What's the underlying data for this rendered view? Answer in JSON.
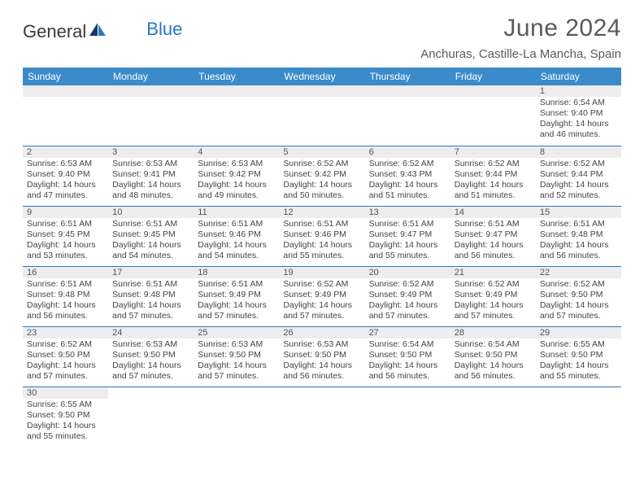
{
  "logo": {
    "part1": "General",
    "part2": "Blue"
  },
  "title": "June 2024",
  "location": "Anchuras, Castille-La Mancha, Spain",
  "dayHeaders": [
    "Sunday",
    "Monday",
    "Tuesday",
    "Wednesday",
    "Thursday",
    "Friday",
    "Saturday"
  ],
  "colors": {
    "headerBg": "#3b8bca",
    "headerText": "#ffffff",
    "rowStripe": "#ededed",
    "border": "#2b77c0",
    "text": "#454545",
    "titleText": "#5a5a5a"
  },
  "fonts": {
    "title_pt": 30,
    "location_pt": 15,
    "header_pt": 12,
    "daynum_pt": 11,
    "body_pt": 10.5
  },
  "weeks": [
    [
      null,
      null,
      null,
      null,
      null,
      null,
      {
        "n": "1",
        "sr": "Sunrise: 6:54 AM",
        "ss": "Sunset: 9:40 PM",
        "d1": "Daylight: 14 hours",
        "d2": "and 46 minutes."
      }
    ],
    [
      {
        "n": "2",
        "sr": "Sunrise: 6:53 AM",
        "ss": "Sunset: 9:40 PM",
        "d1": "Daylight: 14 hours",
        "d2": "and 47 minutes."
      },
      {
        "n": "3",
        "sr": "Sunrise: 6:53 AM",
        "ss": "Sunset: 9:41 PM",
        "d1": "Daylight: 14 hours",
        "d2": "and 48 minutes."
      },
      {
        "n": "4",
        "sr": "Sunrise: 6:53 AM",
        "ss": "Sunset: 9:42 PM",
        "d1": "Daylight: 14 hours",
        "d2": "and 49 minutes."
      },
      {
        "n": "5",
        "sr": "Sunrise: 6:52 AM",
        "ss": "Sunset: 9:42 PM",
        "d1": "Daylight: 14 hours",
        "d2": "and 50 minutes."
      },
      {
        "n": "6",
        "sr": "Sunrise: 6:52 AM",
        "ss": "Sunset: 9:43 PM",
        "d1": "Daylight: 14 hours",
        "d2": "and 51 minutes."
      },
      {
        "n": "7",
        "sr": "Sunrise: 6:52 AM",
        "ss": "Sunset: 9:44 PM",
        "d1": "Daylight: 14 hours",
        "d2": "and 51 minutes."
      },
      {
        "n": "8",
        "sr": "Sunrise: 6:52 AM",
        "ss": "Sunset: 9:44 PM",
        "d1": "Daylight: 14 hours",
        "d2": "and 52 minutes."
      }
    ],
    [
      {
        "n": "9",
        "sr": "Sunrise: 6:51 AM",
        "ss": "Sunset: 9:45 PM",
        "d1": "Daylight: 14 hours",
        "d2": "and 53 minutes."
      },
      {
        "n": "10",
        "sr": "Sunrise: 6:51 AM",
        "ss": "Sunset: 9:45 PM",
        "d1": "Daylight: 14 hours",
        "d2": "and 54 minutes."
      },
      {
        "n": "11",
        "sr": "Sunrise: 6:51 AM",
        "ss": "Sunset: 9:46 PM",
        "d1": "Daylight: 14 hours",
        "d2": "and 54 minutes."
      },
      {
        "n": "12",
        "sr": "Sunrise: 6:51 AM",
        "ss": "Sunset: 9:46 PM",
        "d1": "Daylight: 14 hours",
        "d2": "and 55 minutes."
      },
      {
        "n": "13",
        "sr": "Sunrise: 6:51 AM",
        "ss": "Sunset: 9:47 PM",
        "d1": "Daylight: 14 hours",
        "d2": "and 55 minutes."
      },
      {
        "n": "14",
        "sr": "Sunrise: 6:51 AM",
        "ss": "Sunset: 9:47 PM",
        "d1": "Daylight: 14 hours",
        "d2": "and 56 minutes."
      },
      {
        "n": "15",
        "sr": "Sunrise: 6:51 AM",
        "ss": "Sunset: 9:48 PM",
        "d1": "Daylight: 14 hours",
        "d2": "and 56 minutes."
      }
    ],
    [
      {
        "n": "16",
        "sr": "Sunrise: 6:51 AM",
        "ss": "Sunset: 9:48 PM",
        "d1": "Daylight: 14 hours",
        "d2": "and 56 minutes."
      },
      {
        "n": "17",
        "sr": "Sunrise: 6:51 AM",
        "ss": "Sunset: 9:48 PM",
        "d1": "Daylight: 14 hours",
        "d2": "and 57 minutes."
      },
      {
        "n": "18",
        "sr": "Sunrise: 6:51 AM",
        "ss": "Sunset: 9:49 PM",
        "d1": "Daylight: 14 hours",
        "d2": "and 57 minutes."
      },
      {
        "n": "19",
        "sr": "Sunrise: 6:52 AM",
        "ss": "Sunset: 9:49 PM",
        "d1": "Daylight: 14 hours",
        "d2": "and 57 minutes."
      },
      {
        "n": "20",
        "sr": "Sunrise: 6:52 AM",
        "ss": "Sunset: 9:49 PM",
        "d1": "Daylight: 14 hours",
        "d2": "and 57 minutes."
      },
      {
        "n": "21",
        "sr": "Sunrise: 6:52 AM",
        "ss": "Sunset: 9:49 PM",
        "d1": "Daylight: 14 hours",
        "d2": "and 57 minutes."
      },
      {
        "n": "22",
        "sr": "Sunrise: 6:52 AM",
        "ss": "Sunset: 9:50 PM",
        "d1": "Daylight: 14 hours",
        "d2": "and 57 minutes."
      }
    ],
    [
      {
        "n": "23",
        "sr": "Sunrise: 6:52 AM",
        "ss": "Sunset: 9:50 PM",
        "d1": "Daylight: 14 hours",
        "d2": "and 57 minutes."
      },
      {
        "n": "24",
        "sr": "Sunrise: 6:53 AM",
        "ss": "Sunset: 9:50 PM",
        "d1": "Daylight: 14 hours",
        "d2": "and 57 minutes."
      },
      {
        "n": "25",
        "sr": "Sunrise: 6:53 AM",
        "ss": "Sunset: 9:50 PM",
        "d1": "Daylight: 14 hours",
        "d2": "and 57 minutes."
      },
      {
        "n": "26",
        "sr": "Sunrise: 6:53 AM",
        "ss": "Sunset: 9:50 PM",
        "d1": "Daylight: 14 hours",
        "d2": "and 56 minutes."
      },
      {
        "n": "27",
        "sr": "Sunrise: 6:54 AM",
        "ss": "Sunset: 9:50 PM",
        "d1": "Daylight: 14 hours",
        "d2": "and 56 minutes."
      },
      {
        "n": "28",
        "sr": "Sunrise: 6:54 AM",
        "ss": "Sunset: 9:50 PM",
        "d1": "Daylight: 14 hours",
        "d2": "and 56 minutes."
      },
      {
        "n": "29",
        "sr": "Sunrise: 6:55 AM",
        "ss": "Sunset: 9:50 PM",
        "d1": "Daylight: 14 hours",
        "d2": "and 55 minutes."
      }
    ],
    [
      {
        "n": "30",
        "sr": "Sunrise: 6:55 AM",
        "ss": "Sunset: 9:50 PM",
        "d1": "Daylight: 14 hours",
        "d2": "and 55 minutes."
      },
      null,
      null,
      null,
      null,
      null,
      null
    ]
  ]
}
